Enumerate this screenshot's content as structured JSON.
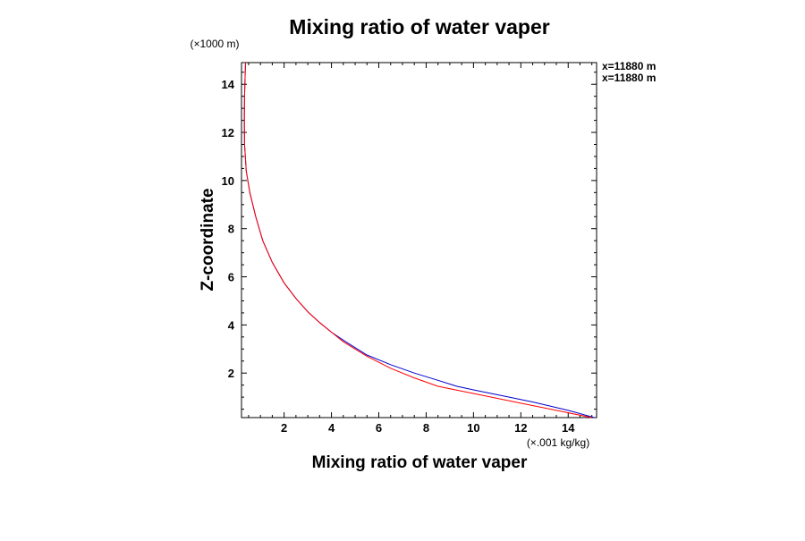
{
  "chart_data": {
    "type": "line",
    "title": "Mixing ratio of water vaper",
    "xlabel": "Mixing ratio of water vaper",
    "ylabel": "Z-coordinate",
    "x_unit_label": "(×.001 kg/kg)",
    "y_unit_label": "(×1000 m)",
    "xlim": [
      0.2,
      15.2
    ],
    "ylim": [
      0.15,
      14.9
    ],
    "xticks": [
      2,
      4,
      6,
      8,
      10,
      12,
      14
    ],
    "yticks": [
      2,
      4,
      6,
      8,
      10,
      12,
      14
    ],
    "grid": false,
    "legend": "right, outside top",
    "series": [
      {
        "name": "x=11880 m",
        "color": "#0000cc",
        "points": [
          [
            15.1,
            0.15
          ],
          [
            14.0,
            0.45
          ],
          [
            12.5,
            0.8
          ],
          [
            11.0,
            1.1
          ],
          [
            10.0,
            1.3
          ],
          [
            9.3,
            1.45
          ],
          [
            8.5,
            1.7
          ],
          [
            7.5,
            2.0
          ],
          [
            6.5,
            2.35
          ],
          [
            5.5,
            2.75
          ],
          [
            4.6,
            3.3
          ],
          [
            4.0,
            3.7
          ],
          [
            3.5,
            4.1
          ],
          [
            3.0,
            4.55
          ],
          [
            2.5,
            5.1
          ],
          [
            2.0,
            5.75
          ],
          [
            1.5,
            6.6
          ],
          [
            1.1,
            7.5
          ],
          [
            0.8,
            8.5
          ],
          [
            0.55,
            9.5
          ],
          [
            0.4,
            10.4
          ],
          [
            0.33,
            11.5
          ],
          [
            0.32,
            12.5
          ],
          [
            0.33,
            13.5
          ],
          [
            0.35,
            14.3
          ],
          [
            0.37,
            14.9
          ]
        ]
      },
      {
        "name": "x=11880 m",
        "color": "#ff0000",
        "points": [
          [
            15.0,
            0.15
          ],
          [
            13.5,
            0.45
          ],
          [
            12.0,
            0.75
          ],
          [
            10.5,
            1.05
          ],
          [
            9.5,
            1.25
          ],
          [
            8.5,
            1.45
          ],
          [
            7.5,
            1.8
          ],
          [
            6.5,
            2.2
          ],
          [
            5.5,
            2.7
          ],
          [
            4.5,
            3.3
          ],
          [
            4.0,
            3.7
          ],
          [
            3.5,
            4.1
          ],
          [
            3.0,
            4.55
          ],
          [
            2.5,
            5.1
          ],
          [
            2.0,
            5.75
          ],
          [
            1.5,
            6.6
          ],
          [
            1.1,
            7.5
          ],
          [
            0.8,
            8.5
          ],
          [
            0.55,
            9.5
          ],
          [
            0.4,
            10.4
          ],
          [
            0.33,
            11.5
          ],
          [
            0.32,
            12.5
          ],
          [
            0.33,
            13.5
          ],
          [
            0.35,
            14.3
          ],
          [
            0.37,
            14.9
          ]
        ]
      }
    ]
  }
}
